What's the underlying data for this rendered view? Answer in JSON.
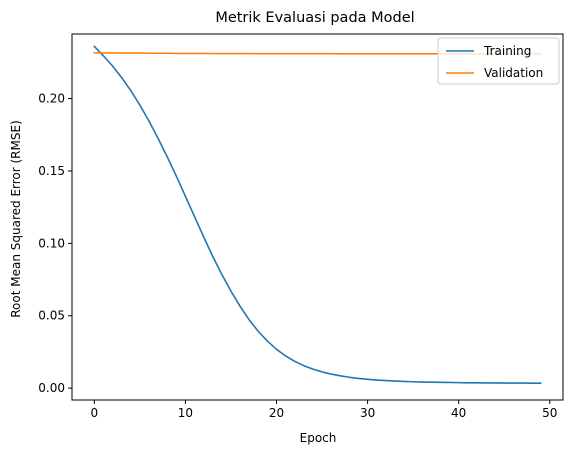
{
  "chart_data": {
    "type": "line",
    "title": "Metrik Evaluasi pada Model",
    "xlabel": "Epoch",
    "ylabel": "Root Mean Squared Error (RMSE)",
    "xlim": [
      -2.45,
      51.45
    ],
    "ylim": [
      -0.0082,
      0.2446
    ],
    "xticks": [
      0,
      10,
      20,
      30,
      40,
      50
    ],
    "xtick_labels": [
      "0",
      "10",
      "20",
      "30",
      "40",
      "50"
    ],
    "yticks": [
      0.0,
      0.05,
      0.1,
      0.15,
      0.2
    ],
    "ytick_labels": [
      "0.00",
      "0.05",
      "0.10",
      "0.15",
      "0.20"
    ],
    "grid": false,
    "legend_position": "upper right",
    "x": [
      0,
      1,
      2,
      3,
      4,
      5,
      6,
      7,
      8,
      9,
      10,
      11,
      12,
      13,
      14,
      15,
      16,
      17,
      18,
      19,
      20,
      21,
      22,
      23,
      24,
      25,
      26,
      27,
      28,
      29,
      30,
      31,
      32,
      33,
      34,
      35,
      36,
      37,
      38,
      39,
      40,
      41,
      42,
      43,
      44,
      45,
      46,
      47,
      48,
      49
    ],
    "series": [
      {
        "name": "Training",
        "color": "#1f77b4",
        "values": [
          0.236,
          0.2295,
          0.2225,
          0.2145,
          0.2055,
          0.1955,
          0.1845,
          0.1725,
          0.1598,
          0.1465,
          0.1325,
          0.1185,
          0.1045,
          0.091,
          0.0785,
          0.067,
          0.0565,
          0.0472,
          0.0392,
          0.0325,
          0.0268,
          0.0222,
          0.0185,
          0.0155,
          0.0131,
          0.0112,
          0.0097,
          0.0085,
          0.0075,
          0.0067,
          0.0061,
          0.0056,
          0.0052,
          0.0049,
          0.0046,
          0.0044,
          0.0042,
          0.0041,
          0.004,
          0.0039,
          0.0038,
          0.0037,
          0.0037,
          0.0036,
          0.0036,
          0.0035,
          0.0035,
          0.0035,
          0.0034,
          0.0034
        ]
      },
      {
        "name": "Validation",
        "color": "#ff7f0e",
        "values": [
          0.2315,
          0.2315,
          0.2315,
          0.2314,
          0.2314,
          0.2314,
          0.2313,
          0.2313,
          0.2313,
          0.2312,
          0.2312,
          0.2312,
          0.2312,
          0.2311,
          0.2311,
          0.2311,
          0.2311,
          0.2311,
          0.231,
          0.231,
          0.231,
          0.231,
          0.231,
          0.231,
          0.231,
          0.231,
          0.231,
          0.2309,
          0.2309,
          0.2309,
          0.2309,
          0.2309,
          0.2309,
          0.2309,
          0.2309,
          0.2309,
          0.2309,
          0.2309,
          0.2309,
          0.2308,
          0.2308,
          0.2308,
          0.2308,
          0.2308,
          0.2308,
          0.2308,
          0.2308,
          0.2308,
          0.2308,
          0.2308
        ]
      }
    ]
  }
}
